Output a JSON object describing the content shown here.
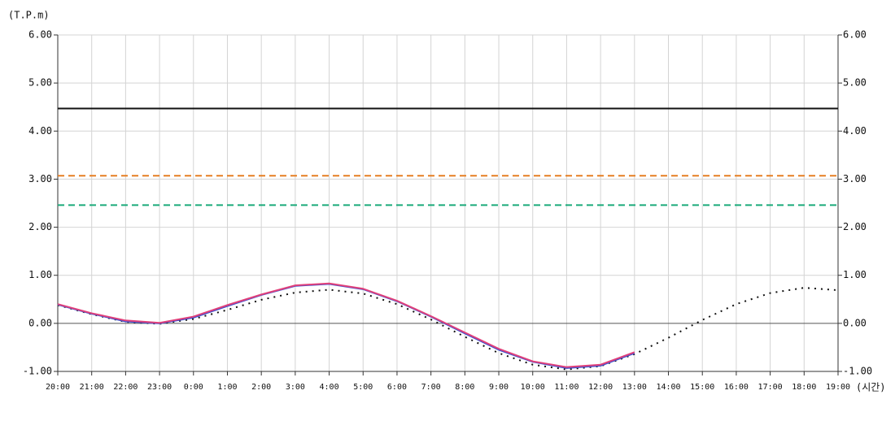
{
  "chart_data": {
    "type": "line",
    "y_label": "(T.P.m)",
    "x_label": "(시간)",
    "categories": [
      "20:00",
      "21:00",
      "22:00",
      "23:00",
      "0:00",
      "1:00",
      "2:00",
      "3:00",
      "4:00",
      "5:00",
      "6:00",
      "7:00",
      "8:00",
      "9:00",
      "10:00",
      "11:00",
      "12:00",
      "13:00",
      "14:00",
      "15:00",
      "16:00",
      "17:00",
      "18:00",
      "19:00"
    ],
    "ylim": [
      -1,
      6
    ],
    "yticks": [
      {
        "value": -1,
        "label": "-1.00"
      },
      {
        "value": 0,
        "label": "0.00"
      },
      {
        "value": 1,
        "label": "1.00"
      },
      {
        "value": 2,
        "label": "2.00"
      },
      {
        "value": 3,
        "label": "3.00"
      },
      {
        "value": 4,
        "label": "4.00"
      },
      {
        "value": 5,
        "label": "5.00"
      },
      {
        "value": 6,
        "label": "6.00"
      }
    ],
    "y2lim": [
      -1,
      6
    ],
    "y2ticks": [
      {
        "value": -1,
        "label": "-1.00"
      },
      {
        "value": 0,
        "label": "0.00"
      },
      {
        "value": 1,
        "label": "1.00"
      },
      {
        "value": 2,
        "label": "2.00"
      },
      {
        "value": 3,
        "label": "3.00"
      },
      {
        "value": 4,
        "label": "4.00"
      },
      {
        "value": 5,
        "label": "5.00"
      },
      {
        "value": 6,
        "label": "6.00"
      }
    ],
    "grid": true,
    "reference_lines": [
      {
        "value": 4.47,
        "color": "#111111",
        "style": "solid"
      },
      {
        "value": 3.07,
        "color": "#e67e22",
        "style": "dashed"
      },
      {
        "value": 2.46,
        "color": "#1aaa7a",
        "style": "dashed"
      }
    ],
    "series": [
      {
        "color": "#111111",
        "style": "dotted",
        "values": [
          0.38,
          0.19,
          0.03,
          -0.01,
          0.09,
          0.28,
          0.49,
          0.64,
          0.7,
          0.62,
          0.4,
          0.08,
          -0.28,
          -0.62,
          -0.86,
          -0.96,
          -0.89,
          -0.64,
          -0.3,
          0.07,
          0.4,
          0.63,
          0.74,
          0.69
        ]
      },
      {
        "color": "#3a4fd0",
        "style": "solid",
        "values": [
          0.39,
          0.2,
          0.04,
          0.0,
          0.12,
          0.36,
          0.59,
          0.78,
          0.82,
          0.71,
          0.46,
          0.14,
          -0.21,
          -0.55,
          -0.8,
          -0.93,
          -0.88,
          -0.62,
          null,
          null,
          null,
          null,
          null,
          null
        ]
      },
      {
        "color": "#e0407a",
        "style": "solid",
        "values": [
          0.4,
          0.21,
          0.06,
          0.01,
          0.14,
          0.38,
          0.6,
          0.79,
          0.83,
          0.72,
          0.47,
          0.15,
          -0.19,
          -0.53,
          -0.79,
          -0.91,
          -0.86,
          -0.6,
          null,
          null,
          null,
          null,
          null,
          null
        ]
      }
    ]
  }
}
